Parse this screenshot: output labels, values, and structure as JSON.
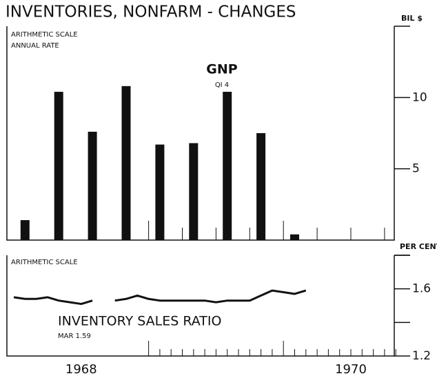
{
  "chart_data": [
    {
      "type": "bar",
      "title": "INVENTORIES, NONFARM - CHANGES",
      "y_unit": "BIL $",
      "annotations": [
        "ARITHMETIC SCALE",
        "ANNUAL RATE",
        "GNP",
        "QI 4"
      ],
      "categories": [
        null,
        null,
        null,
        null,
        null,
        null,
        null,
        null,
        null
      ],
      "values": [
        1.4,
        10.4,
        7.6,
        10.8,
        6.7,
        6.8,
        10.4,
        7.5,
        0.4
      ],
      "color": "#111111",
      "ylim": [
        0,
        15
      ],
      "yticks": [
        5,
        10
      ],
      "grid": false
    },
    {
      "type": "line",
      "y_unit": "PER CENT",
      "annotations": [
        "ARITHMETIC SCALE",
        "INVENTORY SALES RATIO",
        "MAR 1.59"
      ],
      "categories": [
        null,
        null,
        null,
        null,
        null,
        null,
        "1968",
        null,
        null,
        null,
        null,
        null,
        null,
        null,
        null,
        null,
        null,
        null,
        null,
        null,
        null,
        null,
        null,
        null,
        null,
        null,
        null,
        null,
        null,
        null,
        "1970",
        null,
        null,
        null,
        null
      ],
      "series": [
        {
          "name": "INVENTORY SALES RATIO",
          "color": "#111111",
          "values": [
            1.55,
            1.54,
            1.54,
            1.55,
            1.53,
            1.52,
            1.51,
            1.53,
            null,
            1.53,
            1.54,
            1.56,
            1.54,
            1.53,
            1.53,
            1.53,
            1.53,
            1.53,
            1.52,
            1.53,
            1.53,
            1.53,
            1.56,
            1.59,
            1.58,
            1.57,
            1.59,
            null,
            null,
            null,
            null,
            null,
            null,
            null,
            null
          ]
        }
      ],
      "ylim": [
        1.2,
        1.8
      ],
      "yticks": [
        1.2,
        1.6
      ],
      "minor_yticks": [
        1.4,
        1.8
      ],
      "grid": false
    }
  ]
}
